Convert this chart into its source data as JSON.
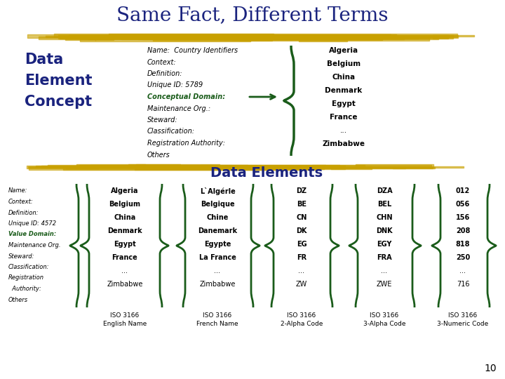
{
  "title": "Same Fact, Different Terms",
  "title_color": "#1a237e",
  "title_fontsize": 20,
  "bg_color": "#ffffff",
  "gold_bar_color": "#c8a000",
  "dark_green": "#1a5c1a",
  "dark_blue": "#1a237e",
  "dec_left_label": [
    "Data",
    "Element",
    "Concept"
  ],
  "dec_fields": [
    "Name:  Country Identifiers",
    "Context:",
    "Definition:",
    "Unique ID: 5789",
    "Conceptual Domain:",
    "Maintenance Org.:",
    "Steward:",
    "Classification:",
    "Registration Authority:",
    "Others"
  ],
  "dec_conceptual_domain_idx": 4,
  "dec_values": [
    "Algeria",
    "Belgium",
    "China",
    "Denmark",
    "Egypt",
    "France",
    "...",
    "Zimbabwe"
  ],
  "de_label": "Data Elements",
  "de_left_fields": [
    "Name:",
    "Context:",
    "Definition:",
    "Unique ID: 4572",
    "Value Domain:",
    "Maintenance Org.",
    "Steward:",
    "Classification:",
    "Registration",
    "  Authority:",
    "Others"
  ],
  "de_value_domain_idx": 4,
  "col1_values": [
    "Algeria",
    "Belgium",
    "China",
    "Denmark",
    "Egypt",
    "France",
    "...",
    "Zimbabwe"
  ],
  "col1_label": [
    "ISO 3166",
    "English Name"
  ],
  "col2_values": [
    "L`Algérle",
    "Belgique",
    "Chine",
    "Danemark",
    "Egypte",
    "La France",
    "...",
    "Zimbabwe"
  ],
  "col2_label": [
    "ISO 3166",
    "French Name"
  ],
  "col3_values": [
    "DZ",
    "BE",
    "CN",
    "DK",
    "EG",
    "FR",
    "...",
    "ZW"
  ],
  "col3_label": [
    "ISO 3166",
    "2-Alpha Code"
  ],
  "col4_values": [
    "DZA",
    "BEL",
    "CHN",
    "DNK",
    "EGY",
    "FRA",
    "...",
    "ZWE"
  ],
  "col4_label": [
    "ISO 3166",
    "3-Alpha Code"
  ],
  "col5_values": [
    "012",
    "056",
    "156",
    "208",
    "818",
    "250",
    "...",
    "716"
  ],
  "col5_label": [
    "ISO 3166",
    "3-Numeric Code"
  ],
  "page_num": "10"
}
